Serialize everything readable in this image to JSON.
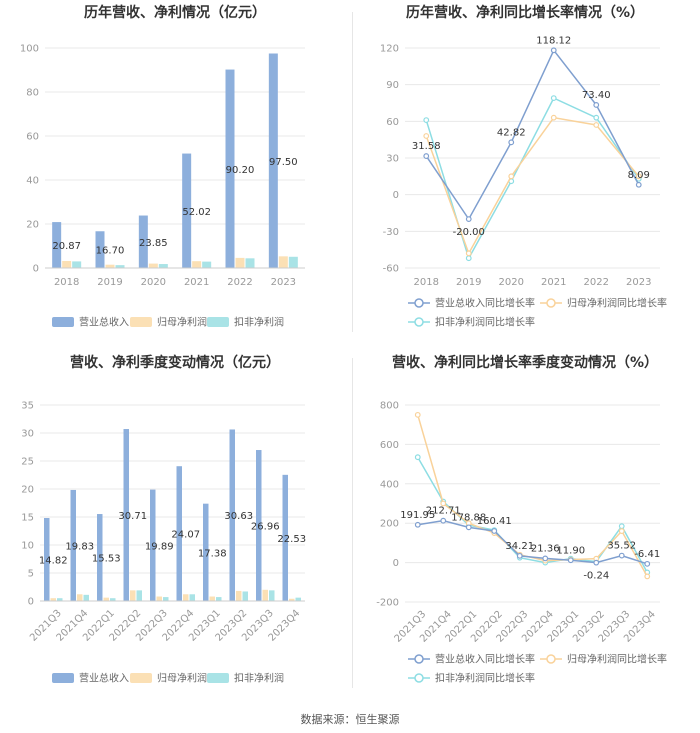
{
  "source_label": "数据来源：恒生聚源",
  "colors": {
    "revenue": "#8dafdc",
    "net_profit": "#fbe0b5",
    "deducted_profit": "#a9e3e6",
    "revenue_line": "#7f9fcf",
    "net_profit_line": "#f9d29a",
    "deducted_profit_line": "#8ddde3"
  },
  "chart_data": [
    {
      "type": "bar",
      "title": "历年营收、净利情况（亿元）",
      "categories": [
        "2018",
        "2019",
        "2020",
        "2021",
        "2022",
        "2023"
      ],
      "ylim": [
        0,
        100
      ],
      "yticks": [
        0,
        20,
        40,
        60,
        80,
        100
      ],
      "grid": true,
      "legend_position": "bottom",
      "series": [
        {
          "name": "营业总收入",
          "values": [
            20.87,
            16.7,
            23.85,
            52.02,
            90.2,
            97.5
          ],
          "labels": [
            "20.87",
            "16.70",
            "23.85",
            "52.02",
            "90.20",
            "97.50"
          ]
        },
        {
          "name": "归母净利润",
          "values": [
            3.2,
            1.5,
            2.0,
            3.1,
            4.6,
            5.3
          ]
        },
        {
          "name": "扣非净利润",
          "values": [
            3.0,
            1.3,
            1.8,
            2.9,
            4.4,
            5.1
          ]
        }
      ]
    },
    {
      "type": "line",
      "title": "历年营收、净利同比增长率情况（%）",
      "categories": [
        "2018",
        "2019",
        "2020",
        "2021",
        "2022",
        "2023"
      ],
      "ylim": [
        -60,
        120
      ],
      "yticks": [
        -60,
        -30,
        0,
        30,
        60,
        90,
        120
      ],
      "grid": true,
      "legend_position": "bottom",
      "series": [
        {
          "name": "营业总收入同比增长率",
          "values": [
            31.58,
            -20.0,
            42.82,
            118.12,
            73.4,
            8.09
          ],
          "labels": [
            "31.58",
            "-20.00",
            "42.82",
            "118.12",
            "73.40",
            "8.09"
          ]
        },
        {
          "name": "归母净利润同比增长率",
          "values": [
            48,
            -48,
            15,
            63,
            57,
            15
          ]
        },
        {
          "name": "扣非净利润同比增长率",
          "values": [
            61,
            -52,
            11,
            79,
            63,
            13
          ]
        }
      ]
    },
    {
      "type": "bar",
      "title": "营收、净利季度变动情况（亿元）",
      "categories": [
        "2021Q3",
        "2021Q4",
        "2022Q1",
        "2022Q2",
        "2022Q3",
        "2022Q4",
        "2023Q1",
        "2023Q2",
        "2023Q3",
        "2023Q4"
      ],
      "ylim": [
        0,
        35
      ],
      "yticks": [
        0,
        5,
        10,
        15,
        20,
        25,
        30,
        35
      ],
      "grid": true,
      "legend_position": "bottom",
      "series": [
        {
          "name": "营业总收入",
          "values": [
            14.82,
            19.83,
            15.53,
            30.71,
            19.89,
            24.07,
            17.38,
            30.63,
            26.96,
            22.53
          ],
          "labels": [
            "14.82",
            "19.83",
            "15.53",
            "30.71",
            "19.89",
            "24.07",
            "17.38",
            "30.63",
            "26.96",
            "22.53"
          ]
        },
        {
          "name": "归母净利润",
          "values": [
            0.5,
            1.2,
            0.6,
            1.9,
            0.8,
            1.2,
            0.8,
            1.8,
            2.0,
            0.4
          ]
        },
        {
          "name": "扣非净利润",
          "values": [
            0.5,
            1.1,
            0.5,
            1.9,
            0.7,
            1.2,
            0.7,
            1.7,
            1.9,
            0.6
          ]
        }
      ]
    },
    {
      "type": "line",
      "title": "营收、净利同比增长率季度变动情况（%）",
      "categories": [
        "2021Q3",
        "2021Q4",
        "2022Q1",
        "2022Q2",
        "2022Q3",
        "2022Q4",
        "2023Q1",
        "2023Q2",
        "2023Q3",
        "2023Q4"
      ],
      "ylim": [
        -200,
        800
      ],
      "yticks": [
        -200,
        0,
        200,
        400,
        600,
        800
      ],
      "grid": true,
      "legend_position": "bottom",
      "series": [
        {
          "name": "营业总收入同比增长率",
          "values": [
            191.95,
            212.71,
            178.88,
            160.41,
            34.21,
            21.36,
            11.9,
            -0.24,
            35.52,
            -6.41
          ],
          "labels": [
            "191.95",
            "212.71",
            "178.88",
            "160.41",
            "34.21",
            "21.36",
            "11.90",
            "-0.24",
            "35.52",
            "-6.41"
          ]
        },
        {
          "name": "归母净利润同比增长率",
          "values": [
            750,
            300,
            200,
            150,
            40,
            10,
            15,
            20,
            160,
            -70
          ]
        },
        {
          "name": "扣非净利润同比增长率",
          "values": [
            535,
            310,
            190,
            165,
            25,
            0,
            20,
            5,
            185,
            -50
          ]
        }
      ]
    }
  ]
}
